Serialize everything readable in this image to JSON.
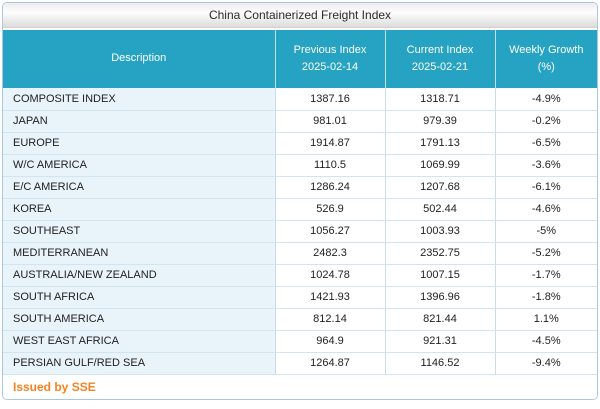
{
  "title": "China Containerized Freight Index",
  "table": {
    "headers": [
      {
        "line1": "Description",
        "line2": ""
      },
      {
        "line1": "Previous Index",
        "line2": "2025-02-14"
      },
      {
        "line1": "Current Index",
        "line2": "2025-02-21"
      },
      {
        "line1": "Weekly Growth",
        "line2": "(%)"
      }
    ],
    "rows": [
      {
        "description": "COMPOSITE INDEX",
        "previous": "1387.16",
        "current": "1318.71",
        "growth": "-4.9%"
      },
      {
        "description": "JAPAN",
        "previous": "981.01",
        "current": "979.39",
        "growth": "-0.2%"
      },
      {
        "description": "EUROPE",
        "previous": "1914.87",
        "current": "1791.13",
        "growth": "-6.5%"
      },
      {
        "description": "W/C AMERICA",
        "previous": "1110.5",
        "current": "1069.99",
        "growth": "-3.6%"
      },
      {
        "description": "E/C AMERICA",
        "previous": "1286.24",
        "current": "1207.68",
        "growth": "-6.1%"
      },
      {
        "description": "KOREA",
        "previous": "526.9",
        "current": "502.44",
        "growth": "-4.6%"
      },
      {
        "description": "SOUTHEAST",
        "previous": "1056.27",
        "current": "1003.93",
        "growth": "-5%"
      },
      {
        "description": "MEDITERRANEAN",
        "previous": "2482.3",
        "current": "2352.75",
        "growth": "-5.2%"
      },
      {
        "description": "AUSTRALIA/NEW ZEALAND",
        "previous": "1024.78",
        "current": "1007.15",
        "growth": "-1.7%"
      },
      {
        "description": "SOUTH AFRICA",
        "previous": "1421.93",
        "current": "1396.96",
        "growth": "-1.8%"
      },
      {
        "description": "SOUTH AMERICA",
        "previous": "812.14",
        "current": "821.44",
        "growth": "1.1%"
      },
      {
        "description": "WEST EAST AFRICA",
        "previous": "964.9",
        "current": "921.31",
        "growth": "-4.5%"
      },
      {
        "description": "PERSIAN GULF/RED SEA",
        "previous": "1264.87",
        "current": "1146.52",
        "growth": "-9.4%"
      }
    ]
  },
  "footer": {
    "issued_by": "Issued by SSE"
  },
  "colors": {
    "header_teal": "#26a3c2",
    "description_cell_bg": "#e9f3fa",
    "panel_border": "#a9c7e1",
    "row_divider": "#d2e4f0",
    "issued_by_orange": "#f6821f"
  }
}
